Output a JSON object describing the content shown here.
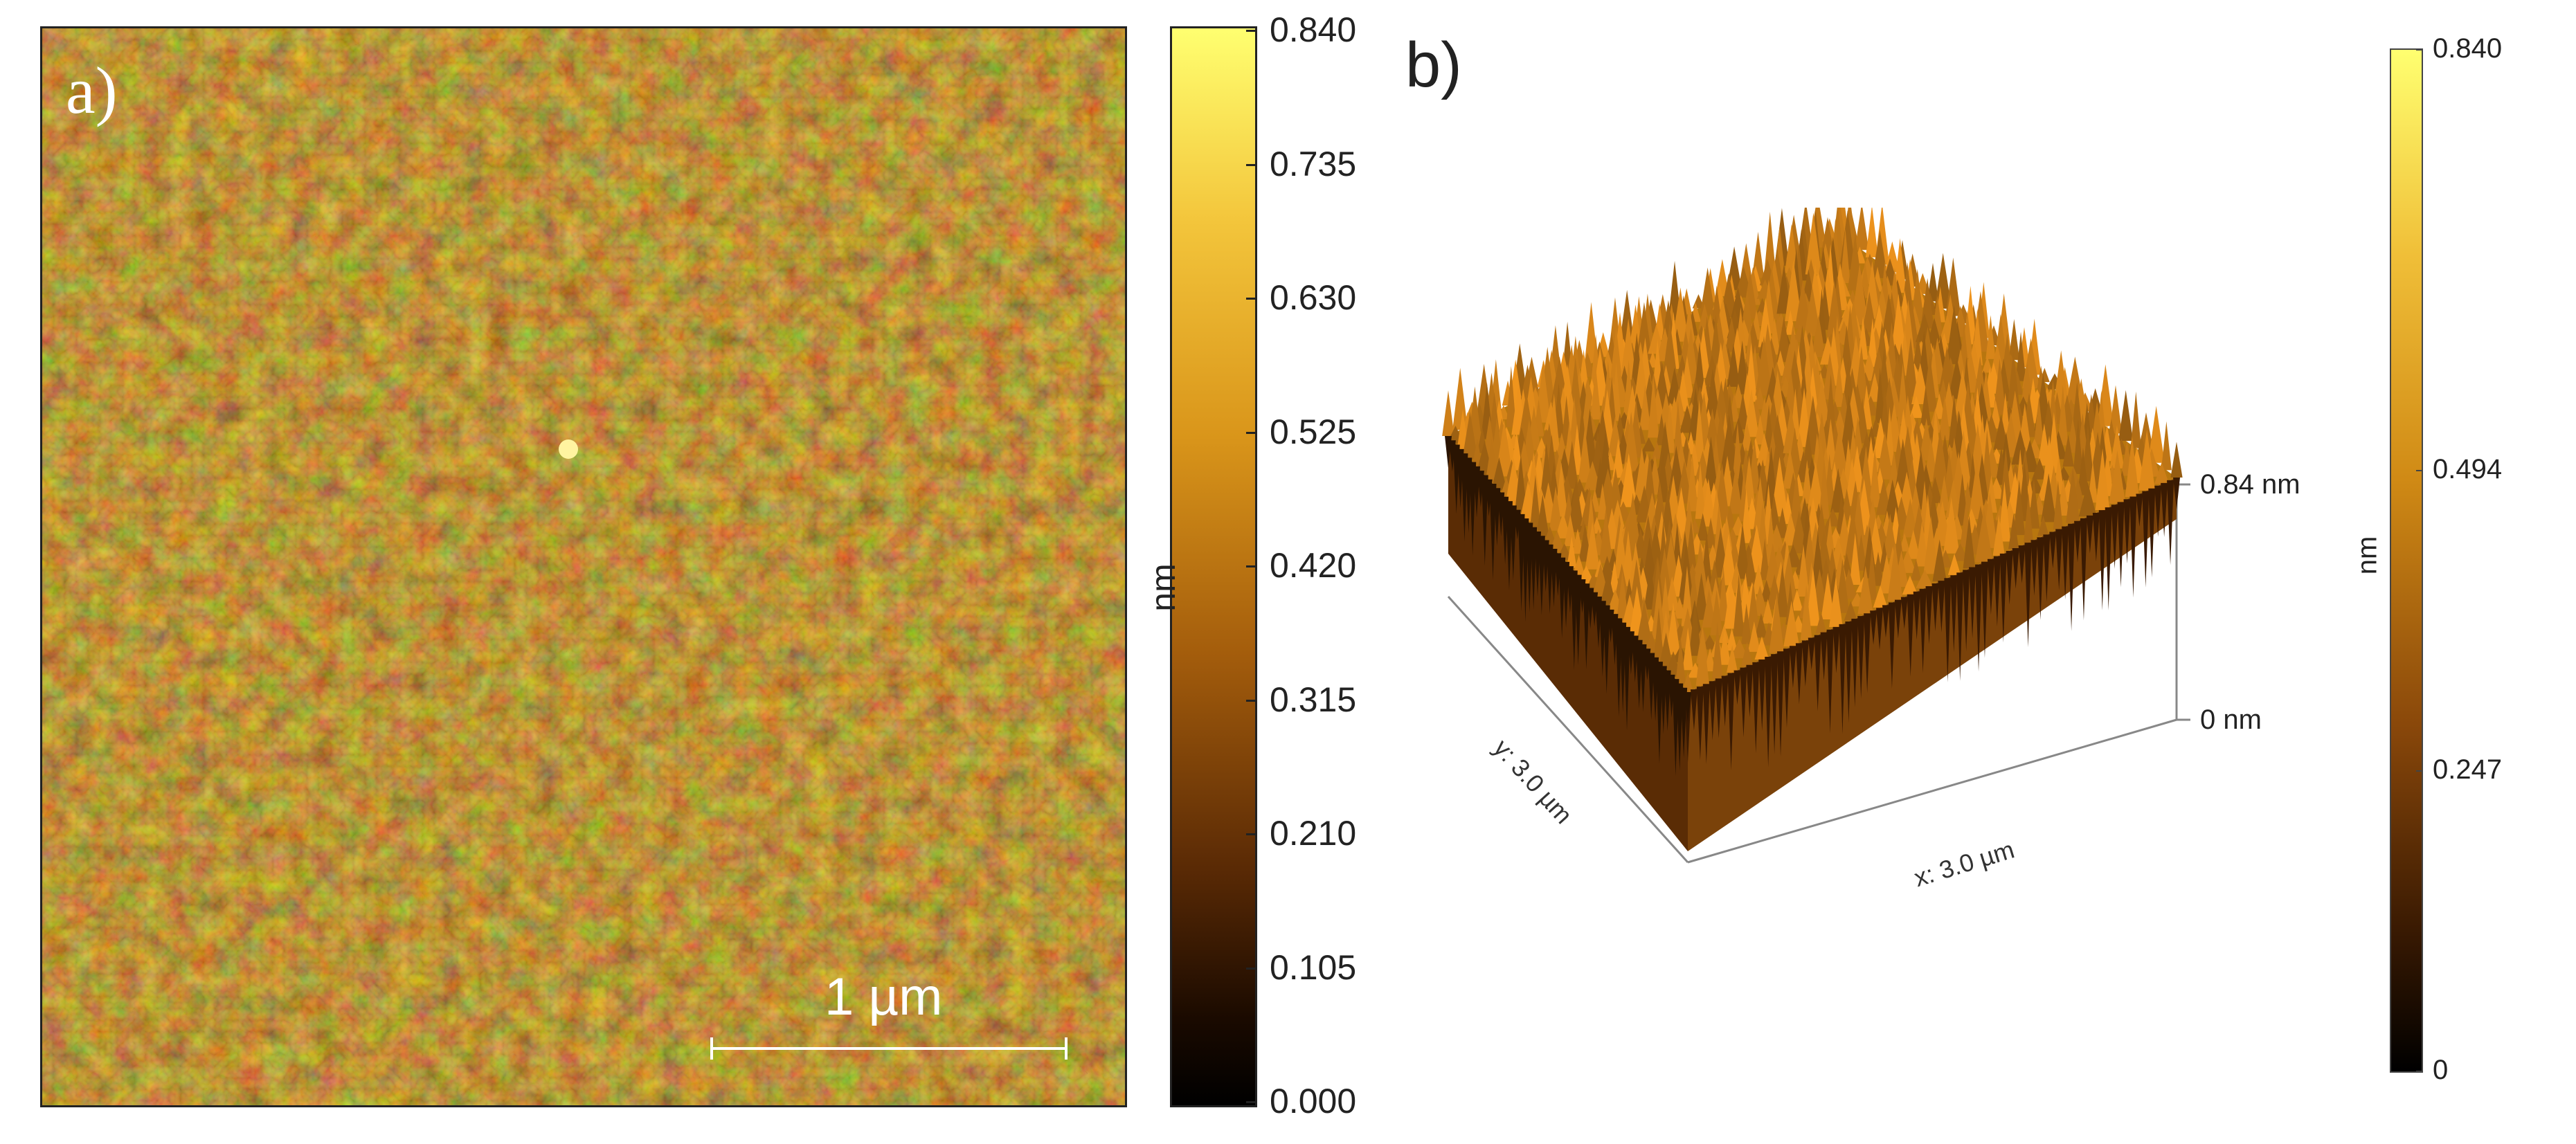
{
  "panel_a": {
    "label": "a)",
    "scale_bar_text": "1 µm",
    "colorbar": {
      "unit": "nm",
      "ticks": [
        "0.840",
        "0.735",
        "0.630",
        "0.525",
        "0.420",
        "0.315",
        "0.210",
        "0.105",
        "0.000"
      ]
    }
  },
  "panel_b": {
    "label": "b)",
    "z_axis": {
      "top": "0.84 nm",
      "bottom": "0 nm"
    },
    "x_axis_label": "x: 3.0 µm",
    "y_axis_label": "y: 3.0 µm",
    "colorbar": {
      "unit": "nm",
      "ticks": [
        "0.840",
        "0.494",
        "0.247",
        "0"
      ]
    }
  },
  "colors": {
    "map_dark": "#2a1402",
    "map_mid": "#9a5a0c",
    "map_light": "#f0c040",
    "colorbar_top": "#ffff70",
    "colorbar_bottom": "#000000"
  }
}
